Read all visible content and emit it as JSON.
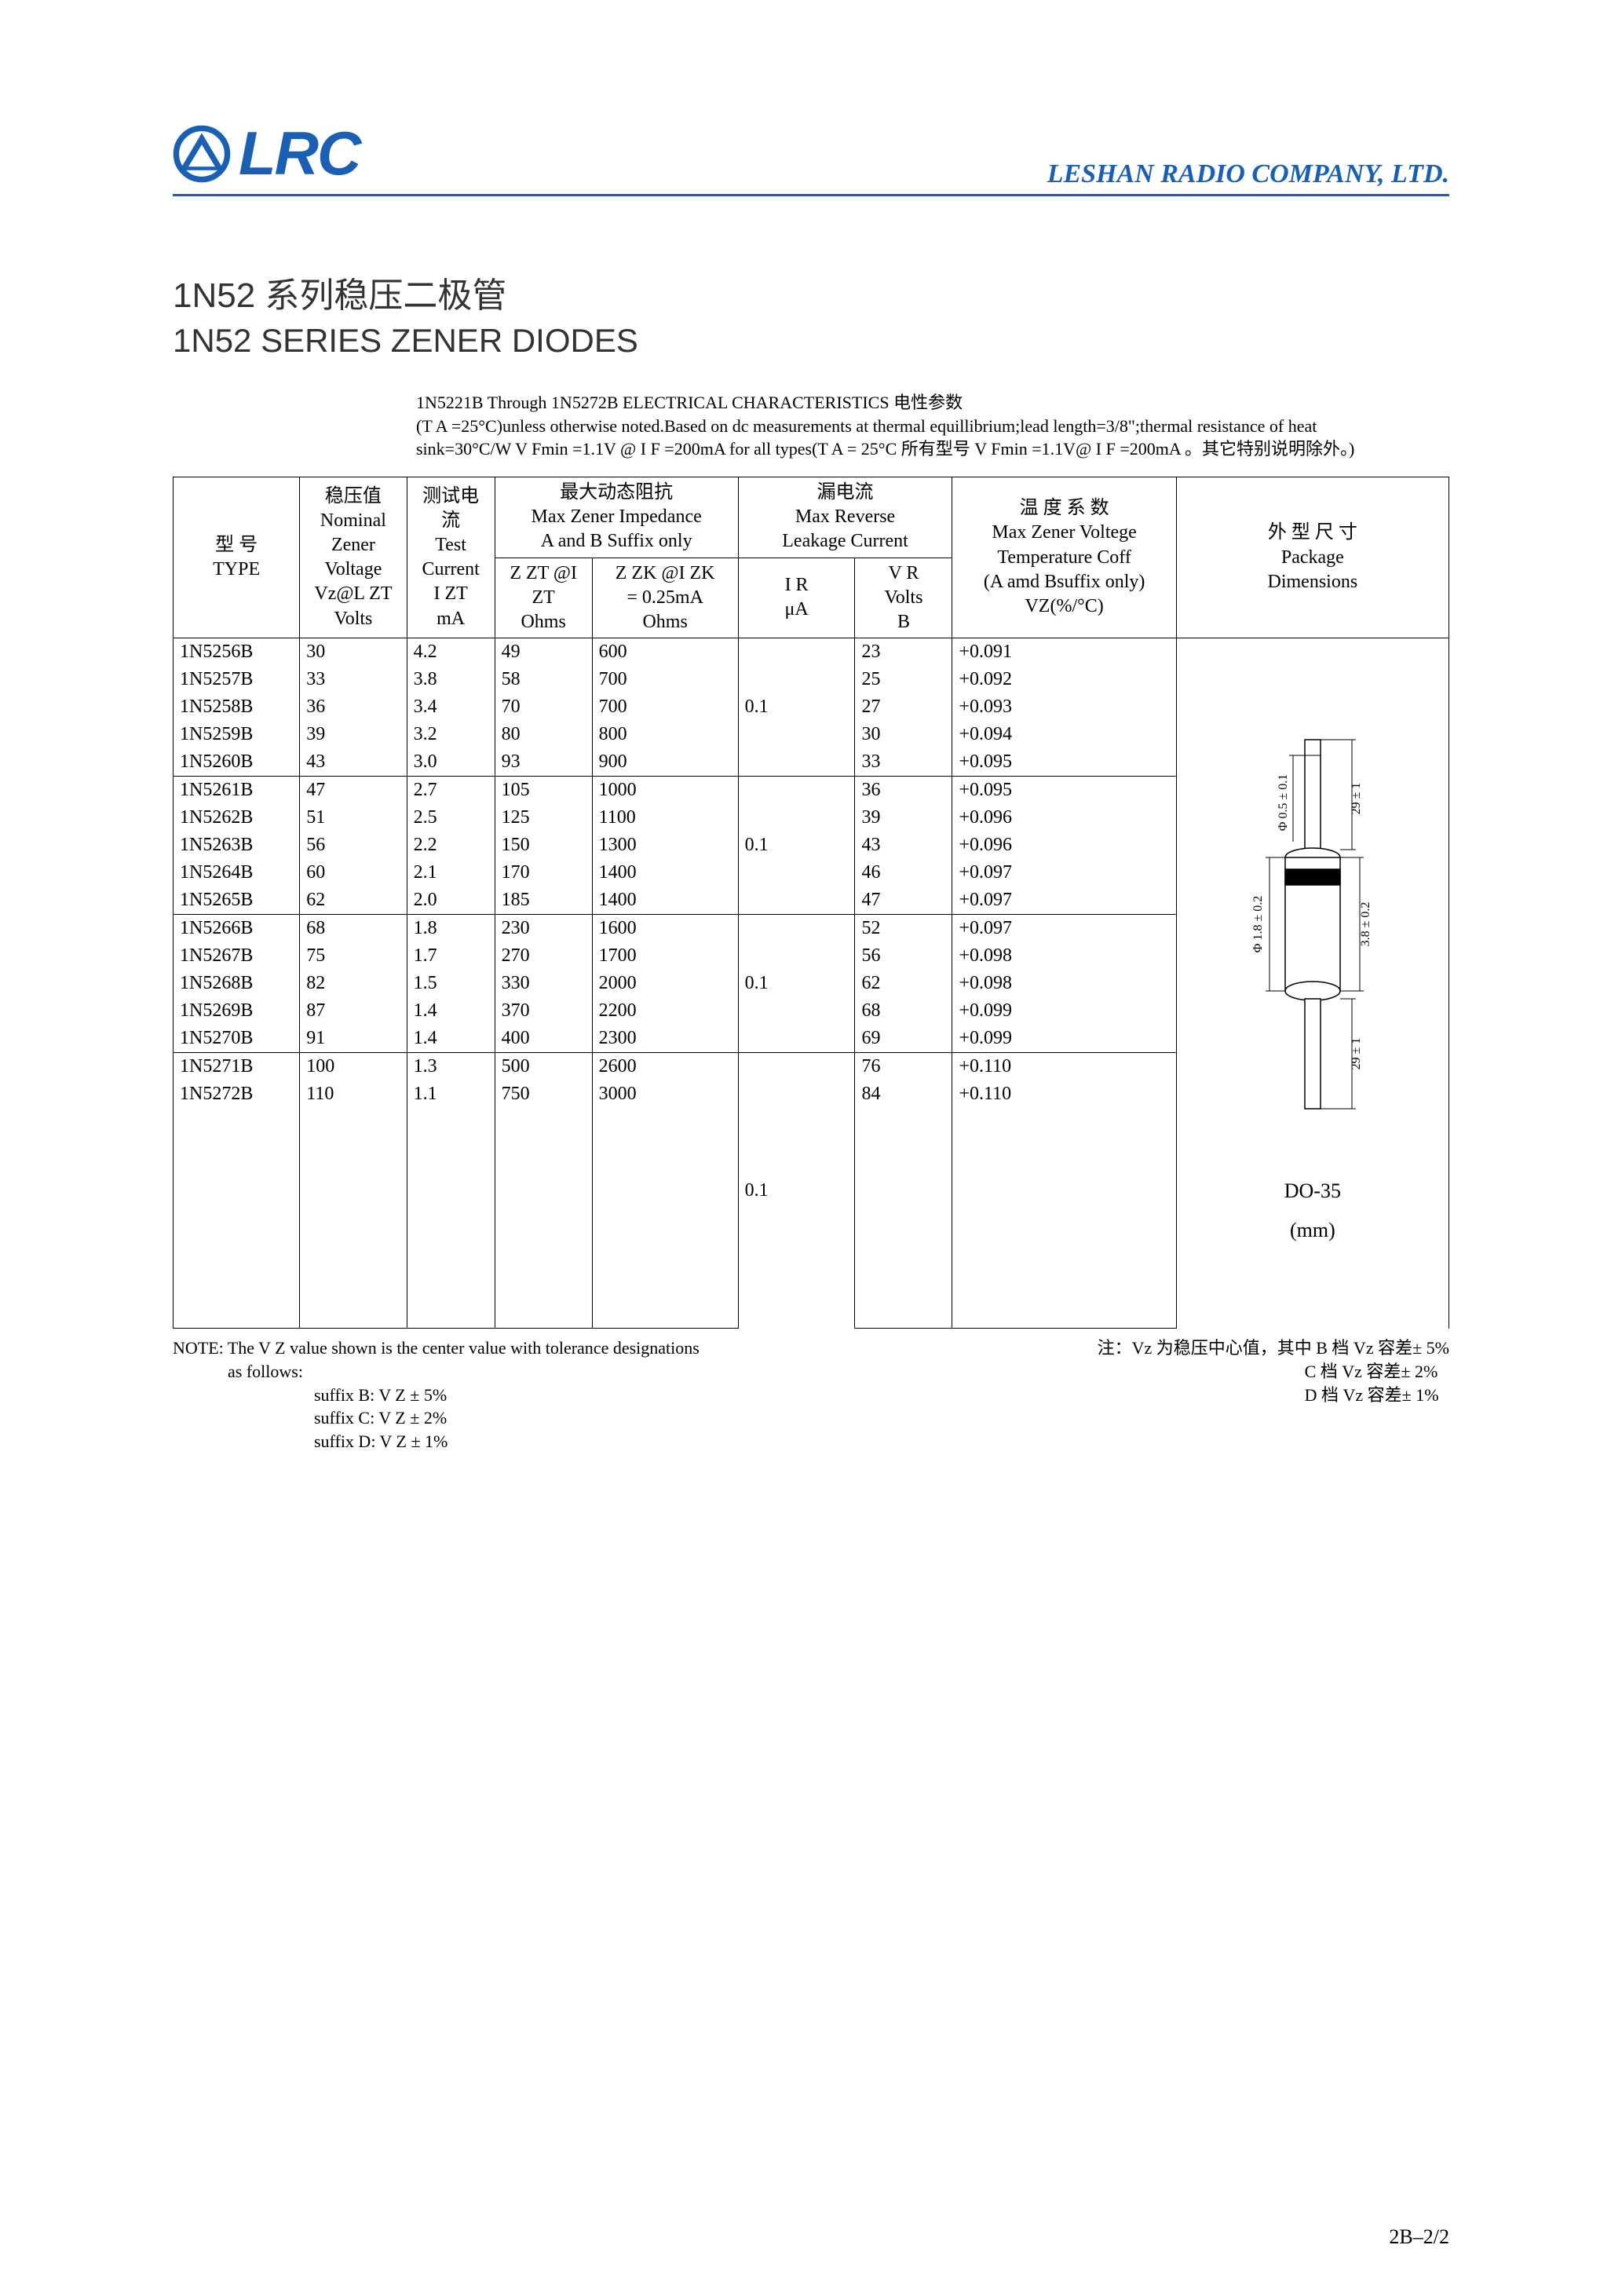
{
  "header": {
    "logo_text": "LRC",
    "company": "LESHAN RADIO COMPANY, LTD."
  },
  "title": {
    "cn": "1N52 系列稳压二极管",
    "en": "1N52 SERIES ZENER DIODES"
  },
  "blurb": {
    "line1": "1N5221B Through 1N5272B ELECTRICAL CHARACTERISTICS 电性参数",
    "line2": "(T A =25°C)unless otherwise noted.Based on dc measurements at thermal equillibrium;lead length=3/8\";thermal resistance of heat",
    "line3": "sink=30°C/W  V Fmin =1.1V @ I F =200mA for all types(T A = 25°C 所有型号 V Fmin =1.1V@ I F =200mA 。其它特别说明除外。)"
  },
  "table": {
    "head": {
      "type_cn": "型  号",
      "type_en": "TYPE",
      "vz_cn": "稳压值",
      "vz_en1": "Nominal",
      "vz_en2": "Zener",
      "vz_en3": "Voltage",
      "vz_sym": "Vz@L ZT",
      "vz_unit": "Volts",
      "izt_cn": "测试电流",
      "izt_en1": "Test",
      "izt_en2": "Current",
      "izt_sym": "I ZT",
      "izt_unit": "mA",
      "imp_cn": "最大动态阻抗",
      "imp_en1": "Max Zener Impedance",
      "imp_en2": "A and B Suffix only",
      "zzt_sym": "Z ZT @I ZT",
      "zzt_unit": "Ohms",
      "zzk_sym": "Z ZK @I ZK",
      "zzk_eq": "= 0.25mA",
      "zzk_unit": "Ohms",
      "lk_cn": "漏电流",
      "lk_en1": "Max Reverse",
      "lk_en2": "Leakage Current",
      "ir_sym": "I R",
      "ir_unit": "μA",
      "vr_sym": "V R",
      "vr_unit1": "Volts",
      "vr_unit2": "B",
      "tc_cn": "温 度 系 数",
      "tc_en": "Max Zener Voltege",
      "tc_en2": "Temperature Coff",
      "tc_en3": "(A amd Bsuffix only)",
      "tc_unit": "VZ(%/°C)",
      "pkg_cn": "外 型 尺 寸",
      "pkg_en1": "Package",
      "pkg_en2": "Dimensions"
    },
    "groups": [
      {
        "ir": "0.1",
        "rows": [
          {
            "type": "1N5256B",
            "vz": "30",
            "izt": "4.2",
            "zzt": "49",
            "zzk": "600",
            "vr": "23",
            "tc": "+0.091"
          },
          {
            "type": "1N5257B",
            "vz": "33",
            "izt": "3.8",
            "zzt": "58",
            "zzk": "700",
            "vr": "25",
            "tc": "+0.092"
          },
          {
            "type": "1N5258B",
            "vz": "36",
            "izt": "3.4",
            "zzt": "70",
            "zzk": "700",
            "vr": "27",
            "tc": "+0.093"
          },
          {
            "type": "1N5259B",
            "vz": "39",
            "izt": "3.2",
            "zzt": "80",
            "zzk": "800",
            "vr": "30",
            "tc": "+0.094"
          },
          {
            "type": "1N5260B",
            "vz": "43",
            "izt": "3.0",
            "zzt": "93",
            "zzk": "900",
            "vr": "33",
            "tc": "+0.095"
          }
        ]
      },
      {
        "ir": "0.1",
        "rows": [
          {
            "type": "1N5261B",
            "vz": "47",
            "izt": "2.7",
            "zzt": "105",
            "zzk": "1000",
            "vr": "36",
            "tc": "+0.095"
          },
          {
            "type": "1N5262B",
            "vz": "51",
            "izt": "2.5",
            "zzt": "125",
            "zzk": "1100",
            "vr": "39",
            "tc": "+0.096"
          },
          {
            "type": "1N5263B",
            "vz": "56",
            "izt": "2.2",
            "zzt": "150",
            "zzk": "1300",
            "vr": "43",
            "tc": "+0.096"
          },
          {
            "type": "1N5264B",
            "vz": "60",
            "izt": "2.1",
            "zzt": "170",
            "zzk": "1400",
            "vr": "46",
            "tc": "+0.097"
          },
          {
            "type": "1N5265B",
            "vz": "62",
            "izt": "2.0",
            "zzt": "185",
            "zzk": "1400",
            "vr": "47",
            "tc": "+0.097"
          }
        ]
      },
      {
        "ir": "0.1",
        "rows": [
          {
            "type": "1N5266B",
            "vz": "68",
            "izt": "1.8",
            "zzt": "230",
            "zzk": "1600",
            "vr": "52",
            "tc": "+0.097"
          },
          {
            "type": "1N5267B",
            "vz": "75",
            "izt": "1.7",
            "zzt": "270",
            "zzk": "1700",
            "vr": "56",
            "tc": "+0.098"
          },
          {
            "type": "1N5268B",
            "vz": "82",
            "izt": "1.5",
            "zzt": "330",
            "zzk": "2000",
            "vr": "62",
            "tc": "+0.098"
          },
          {
            "type": "1N5269B",
            "vz": "87",
            "izt": "1.4",
            "zzt": "370",
            "zzk": "2200",
            "vr": "68",
            "tc": "+0.099"
          },
          {
            "type": "1N5270B",
            "vz": "91",
            "izt": "1.4",
            "zzt": "400",
            "zzk": "2300",
            "vr": "69",
            "tc": "+0.099"
          }
        ]
      },
      {
        "ir": "0.1",
        "rows": [
          {
            "type": "1N5271B",
            "vz": "100",
            "izt": "1.3",
            "zzt": "500",
            "zzk": "2600",
            "vr": "76",
            "tc": "+0.110"
          },
          {
            "type": "1N5272B",
            "vz": "110",
            "izt": "1.1",
            "zzt": "750",
            "zzk": "3000",
            "vr": "84",
            "tc": "+0.110"
          }
        ]
      }
    ],
    "package": {
      "label1": "DO-35",
      "label2": "(mm)",
      "dim_lead_d": "Φ 0.5 ± 0.1",
      "dim_lead_l_top": "29 ± 1",
      "dim_body_d": "Φ 1.8 ± 0.2",
      "dim_body_l": "3.8 ± 0.2",
      "dim_lead_l_bot": "29 ± 1"
    }
  },
  "notes": {
    "left": {
      "l1": "NOTE: The V Z value shown is the center value with tolerance designations",
      "l2": "as  follows:",
      "l3": "suffix B:  V Z ± 5%",
      "l4": "suffix C:  V Z ± 2%",
      "l5": "suffix D:  V Z ± 1%"
    },
    "right": {
      "l1": "注：Vz 为稳压中心值，其中 B 档 Vz 容差± 5%",
      "l2": "C 档 Vz 容差± 2%",
      "l3": "D 档 Vz 容差± 1%"
    }
  },
  "page": "2B–2/2",
  "colors": {
    "brand": "#1a5fb4",
    "text": "#000000",
    "bg": "#ffffff"
  }
}
